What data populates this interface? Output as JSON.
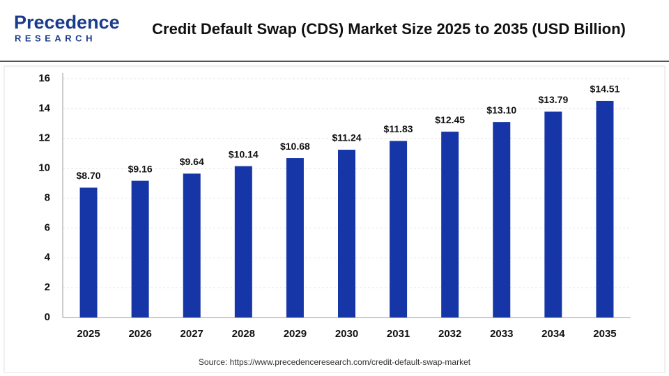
{
  "logo": {
    "name": "Precedence",
    "tagline": "RESEARCH"
  },
  "chart_data": {
    "type": "bar",
    "title": "Credit Default Swap (CDS) Market Size 2025 to 2035 (USD Billion)",
    "categories": [
      "2025",
      "2026",
      "2027",
      "2028",
      "2029",
      "2030",
      "2031",
      "2032",
      "2033",
      "2034",
      "2035"
    ],
    "values": [
      8.7,
      9.16,
      9.64,
      10.14,
      10.68,
      11.24,
      11.83,
      12.45,
      13.1,
      13.79,
      14.51
    ],
    "value_labels": [
      "$8.70",
      "$9.16",
      "$9.64",
      "$10.14",
      "$10.68",
      "$11.24",
      "$11.83",
      "$12.45",
      "$13.10",
      "$13.79",
      "$14.51"
    ],
    "color": "#1636a8",
    "ylim": [
      0,
      16
    ],
    "yticks": [
      0,
      2,
      4,
      6,
      8,
      10,
      12,
      14,
      16
    ],
    "grid": true,
    "source": "Source: https://www.precedenceresearch.com/credit-default-swap-market"
  }
}
